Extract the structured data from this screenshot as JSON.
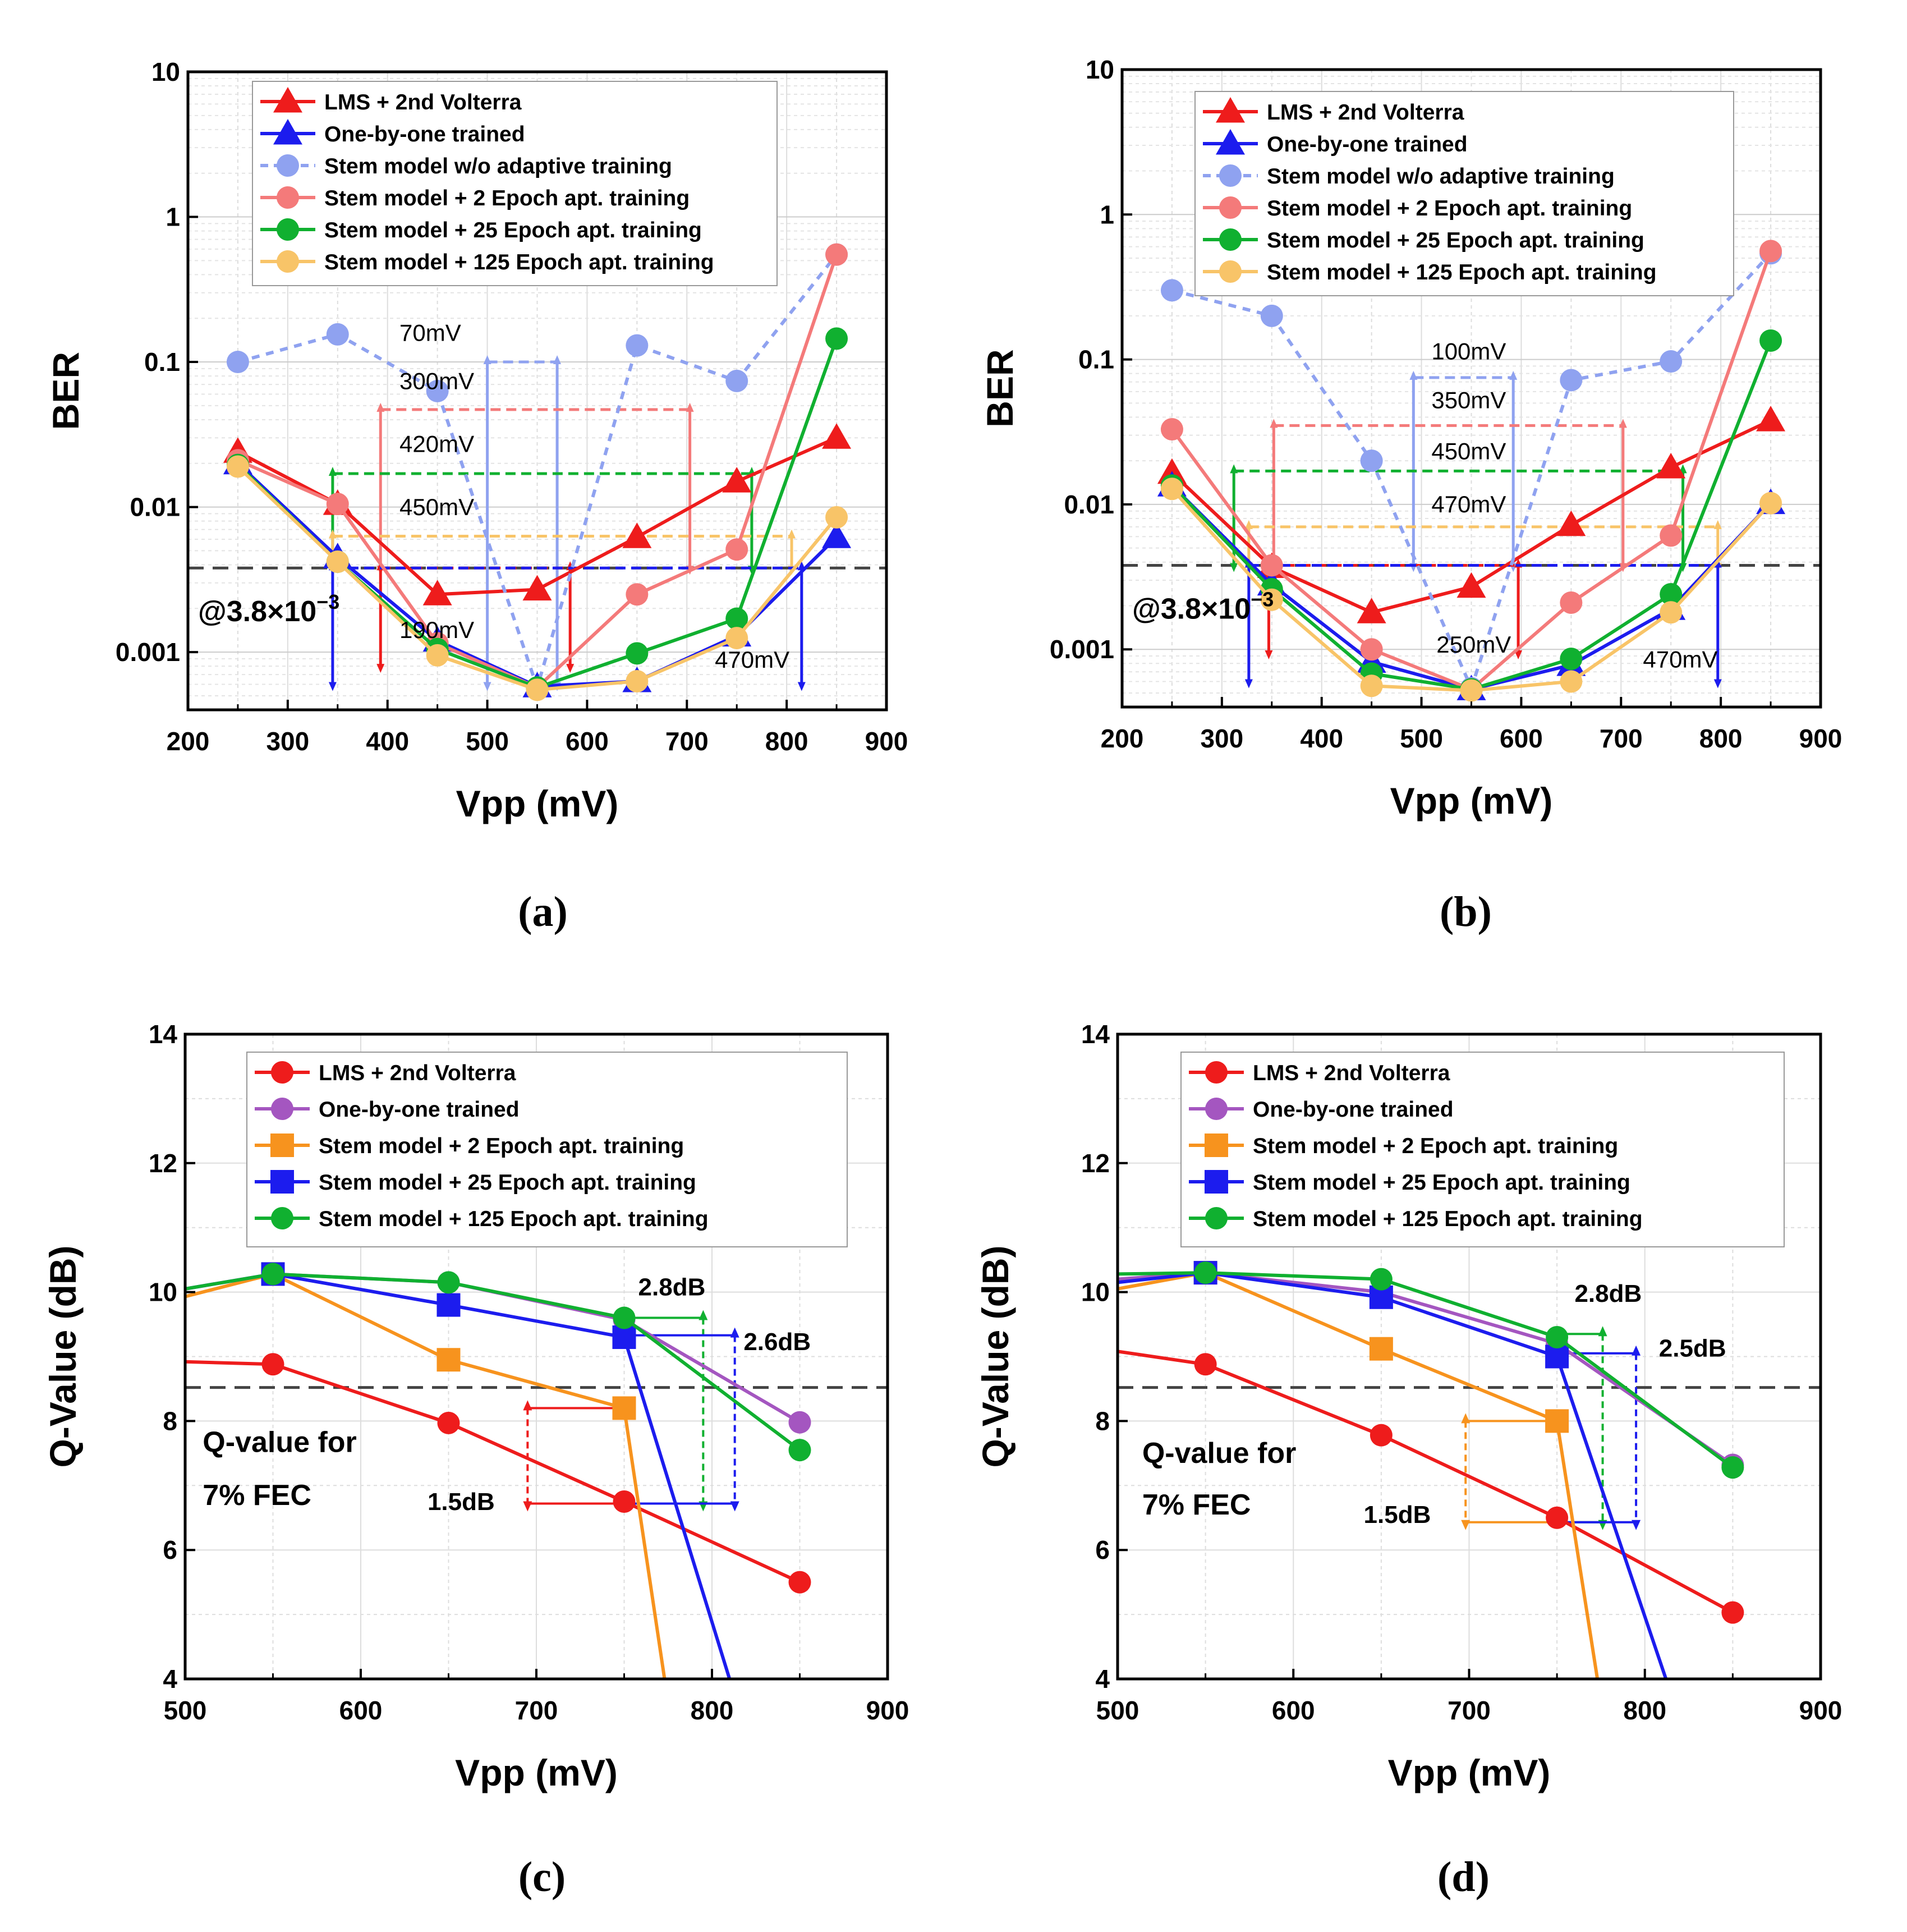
{
  "panel_labels": [
    "(a)",
    "(b)",
    "(c)",
    "(d)"
  ],
  "colors": {
    "lms": "#ee1c1c",
    "one_by_one": "#1c1cee",
    "stem_wo": "#8fa2f0",
    "stem_2_ber": "#f47a7a",
    "stem_25_ber": "#10b030",
    "stem_125_ber": "#f8c468",
    "one_by_one_q": "#a456c0",
    "stem_2_q": "#f7931e",
    "stem_25_q": "#1c1cee",
    "stem_125_q": "#10b030",
    "threshold": "#444444"
  },
  "chart_data": [
    {
      "id": "a",
      "type": "line",
      "yscale": "log",
      "xlabel": "Vpp (mV)",
      "ylabel": "BER",
      "xlim": [
        200,
        900
      ],
      "ylim": [
        0.0004,
        10
      ],
      "xticks": [
        200,
        300,
        400,
        500,
        600,
        700,
        800,
        900
      ],
      "yticks": [
        0.001,
        0.01,
        0.1,
        1,
        10
      ],
      "yticklabels": [
        "0.001",
        "0.01",
        "0.1",
        "1",
        "10"
      ],
      "threshold": 0.0038,
      "threshold_label": "@3.8×10",
      "threshold_exp": "−3",
      "x": [
        250,
        350,
        450,
        550,
        650,
        750,
        850
      ],
      "series": [
        {
          "name": "LMS + 2nd Volterra",
          "color": "lms",
          "marker": "triangle",
          "dash": false,
          "values": [
            0.024,
            0.0105,
            0.0025,
            0.0027,
            0.0062,
            0.015,
            0.03
          ]
        },
        {
          "name": "One-by-one trained",
          "color": "one_by_one",
          "marker": "triangle",
          "dash": false,
          "values": [
            0.02,
            0.0045,
            0.0012,
            0.00058,
            0.00063,
            0.0013,
            0.0062
          ]
        },
        {
          "name": "Stem model w/o adaptive training",
          "color": "stem_wo",
          "marker": "circle",
          "dash": true,
          "values": [
            0.1,
            0.155,
            0.063,
            0.00057,
            0.13,
            0.074,
            0.55
          ]
        },
        {
          "name": "Stem model + 2 Epoch apt. training",
          "color": "stem_2_ber",
          "marker": "circle",
          "dash": false,
          "values": [
            0.021,
            0.0105,
            0.00115,
            0.00057,
            0.0025,
            0.0051,
            0.55
          ]
        },
        {
          "name": "Stem model + 25 Epoch apt. training",
          "color": "stem_25_ber",
          "marker": "circle",
          "dash": false,
          "values": [
            0.0195,
            0.0042,
            0.00105,
            0.00057,
            0.00098,
            0.0017,
            0.145
          ]
        },
        {
          "name": "Stem model + 125 Epoch apt. training",
          "color": "stem_125_ber",
          "marker": "circle",
          "dash": false,
          "values": [
            0.019,
            0.0042,
            0.00095,
            0.00055,
            0.00063,
            0.00125,
            0.0085
          ]
        }
      ],
      "annotations": [
        {
          "text": "70mV",
          "at": [
            412,
            0.14
          ]
        },
        {
          "text": "300mV",
          "at": [
            412,
            0.065
          ]
        },
        {
          "text": "420mV",
          "at": [
            412,
            0.024
          ]
        },
        {
          "text": "450mV",
          "at": [
            412,
            0.0088
          ]
        },
        {
          "text": "190mV",
          "at": [
            412,
            0.00125
          ]
        },
        {
          "text": "470mV",
          "at": [
            728,
            0.00078
          ]
        }
      ],
      "brackets": [
        {
          "color": "stem_wo",
          "x1": 500,
          "x2": 570,
          "ytop": 0.1,
          "ybot": 0.0006
        },
        {
          "color": "stem_2_ber",
          "x1": 393,
          "x2": 703,
          "ytop": 0.047,
          "ybot": 0.0038
        },
        {
          "color": "stem_25_ber",
          "x1": 345,
          "x2": 765,
          "ytop": 0.017,
          "ybot": 0.0038
        },
        {
          "color": "stem_125_ber",
          "x1": 345,
          "x2": 805,
          "ytop": 0.0063,
          "ybot": 0.0038
        },
        {
          "color": "lms",
          "x1": 393,
          "x2": 583,
          "ytop": 0.0038,
          "ybot": 0.0008
        },
        {
          "color": "one_by_one",
          "x1": 345,
          "x2": 815,
          "ytop": 0.0038,
          "ybot": 0.0006
        }
      ]
    },
    {
      "id": "b",
      "type": "line",
      "yscale": "log",
      "xlabel": "Vpp (mV)",
      "ylabel": "BER",
      "xlim": [
        200,
        900
      ],
      "ylim": [
        0.0004,
        10
      ],
      "xticks": [
        200,
        300,
        400,
        500,
        600,
        700,
        800,
        900
      ],
      "yticks": [
        0.001,
        0.01,
        0.1,
        1,
        10
      ],
      "yticklabels": [
        "0.001",
        "0.01",
        "0.1",
        "1",
        "10"
      ],
      "threshold": 0.0038,
      "threshold_label": "@3.8×10",
      "threshold_exp": "−3",
      "x": [
        250,
        350,
        450,
        550,
        650,
        750,
        850
      ],
      "series": [
        {
          "name": "LMS + 2nd Volterra",
          "color": "lms",
          "marker": "triangle",
          "dash": false,
          "values": [
            0.0165,
            0.0037,
            0.0018,
            0.0027,
            0.0072,
            0.018,
            0.038
          ]
        },
        {
          "name": "One-by-one trained",
          "color": "one_by_one",
          "marker": "triangle",
          "dash": false,
          "values": [
            0.0135,
            0.0028,
            0.00082,
            0.00053,
            0.00078,
            0.0019,
            0.0102
          ]
        },
        {
          "name": "Stem model w/o adaptive training",
          "color": "stem_wo",
          "marker": "circle",
          "dash": true,
          "values": [
            0.3,
            0.2,
            0.02,
            0.00054,
            0.072,
            0.097,
            0.54
          ]
        },
        {
          "name": "Stem model + 2 Epoch apt. training",
          "color": "stem_2_ber",
          "marker": "circle",
          "dash": false,
          "values": [
            0.033,
            0.0038,
            0.001,
            0.00053,
            0.0021,
            0.0061,
            0.56
          ]
        },
        {
          "name": "Stem model + 25 Epoch apt. training",
          "color": "stem_25_ber",
          "marker": "circle",
          "dash": false,
          "values": [
            0.0135,
            0.0026,
            0.00068,
            0.00053,
            0.00086,
            0.0024,
            0.135
          ]
        },
        {
          "name": "Stem model + 125 Epoch apt. training",
          "color": "stem_125_ber",
          "marker": "circle",
          "dash": false,
          "values": [
            0.0128,
            0.0022,
            0.00056,
            0.00052,
            0.0006,
            0.0018,
            0.0102
          ]
        }
      ],
      "annotations": [
        {
          "text": "100mV",
          "at": [
            510,
            0.1
          ]
        },
        {
          "text": "350mV",
          "at": [
            510,
            0.046
          ]
        },
        {
          "text": "450mV",
          "at": [
            510,
            0.0205
          ]
        },
        {
          "text": "470mV",
          "at": [
            510,
            0.0088
          ]
        },
        {
          "text": "250mV",
          "at": [
            515,
            0.00095
          ]
        },
        {
          "text": "470mV",
          "at": [
            722,
            0.00075
          ]
        }
      ],
      "brackets": [
        {
          "color": "stem_wo",
          "x1": 492,
          "x2": 592,
          "ytop": 0.075,
          "ybot": 0.0038
        },
        {
          "color": "stem_2_ber",
          "x1": 352,
          "x2": 702,
          "ytop": 0.035,
          "ybot": 0.0038
        },
        {
          "color": "stem_25_ber",
          "x1": 312,
          "x2": 762,
          "ytop": 0.017,
          "ybot": 0.0038
        },
        {
          "color": "stem_125_ber",
          "x1": 327,
          "x2": 797,
          "ytop": 0.007,
          "ybot": 0.0038
        },
        {
          "color": "lms",
          "x1": 347,
          "x2": 597,
          "ytop": 0.0038,
          "ybot": 0.00095
        },
        {
          "color": "one_by_one",
          "x1": 327,
          "x2": 797,
          "ytop": 0.0038,
          "ybot": 0.0006
        }
      ]
    },
    {
      "id": "c",
      "type": "line",
      "yscale": "linear",
      "xlabel": "Vpp (mV)",
      "ylabel": "Q-Value (dB)",
      "xlim": [
        500,
        900
      ],
      "ylim": [
        4,
        14
      ],
      "xticks": [
        500,
        600,
        700,
        800,
        900
      ],
      "yticks": [
        4,
        6,
        8,
        10,
        12,
        14
      ],
      "yticklabels": [
        "4",
        "6",
        "8",
        "10",
        "12",
        "14"
      ],
      "threshold": 8.52,
      "q_note": [
        "Q-value for",
        "7% FEC"
      ],
      "series": [
        {
          "name": "LMS + 2nd Volterra",
          "color": "lms",
          "marker": "circle",
          "x": [
            500,
            550,
            650,
            750,
            850
          ],
          "values": [
            8.92,
            8.88,
            7.97,
            6.75,
            5.5
          ],
          "marker_skip_first": true
        },
        {
          "name": "One-by-one trained",
          "color": "one_by_one_q",
          "marker": "circle",
          "x": [
            500,
            550,
            650,
            750,
            850
          ],
          "values": [
            10.05,
            10.28,
            10.15,
            9.57,
            7.98
          ],
          "marker_skip_first": true
        },
        {
          "name": "Stem model + 2 Epoch apt. training",
          "color": "stem_2_q",
          "marker": "square",
          "x": [
            500,
            550,
            650,
            750,
            773
          ],
          "values": [
            9.93,
            10.28,
            8.95,
            8.2,
            4.0
          ],
          "marker_skip_first": true,
          "marker_skip_last": true
        },
        {
          "name": "Stem model + 25 Epoch apt. training",
          "color": "stem_25_q",
          "marker": "square",
          "x": [
            500,
            550,
            650,
            750,
            810
          ],
          "values": [
            10.05,
            10.28,
            9.8,
            9.3,
            4.0
          ],
          "marker_skip_first": true,
          "marker_skip_last": true
        },
        {
          "name": "Stem model + 125 Epoch apt. training",
          "color": "stem_125_q",
          "marker": "circle",
          "x": [
            500,
            550,
            650,
            750,
            850
          ],
          "values": [
            10.05,
            10.28,
            10.15,
            9.6,
            7.55
          ],
          "marker_skip_first": true
        }
      ],
      "annotations": [
        {
          "text": "2.8dB",
          "at": [
            758,
            9.95
          ]
        },
        {
          "text": "2.6dB",
          "at": [
            818,
            9.1
          ]
        },
        {
          "text": "1.5dB",
          "at": [
            638,
            6.62
          ]
        }
      ],
      "brackets": [
        {
          "color": "lms",
          "x_left": 695,
          "x_right": 750,
          "y_top": 8.2,
          "y_bot": 6.72
        },
        {
          "color": "stem_125_q",
          "x_left": 750,
          "x_right": 795,
          "y_top": 9.6,
          "y_bot": 6.72,
          "side": "right"
        },
        {
          "color": "stem_25_q",
          "x_left": 750,
          "x_right": 813,
          "y_top": 9.33,
          "y_bot": 6.72,
          "side": "right"
        }
      ]
    },
    {
      "id": "d",
      "type": "line",
      "yscale": "linear",
      "xlabel": "Vpp (mV)",
      "ylabel": "Q-Value (dB)",
      "xlim": [
        500,
        900
      ],
      "ylim": [
        4,
        14
      ],
      "xticks": [
        500,
        600,
        700,
        800,
        900
      ],
      "yticks": [
        4,
        6,
        8,
        10,
        12,
        14
      ],
      "yticklabels": [
        "4",
        "6",
        "8",
        "10",
        "12",
        "14"
      ],
      "threshold": 8.52,
      "q_note": [
        "Q-value for",
        "7% FEC"
      ],
      "series": [
        {
          "name": "LMS + 2nd Volterra",
          "color": "lms",
          "marker": "circle",
          "x": [
            500,
            550,
            650,
            750,
            850
          ],
          "values": [
            9.08,
            8.88,
            7.78,
            6.5,
            5.03
          ],
          "marker_skip_first": true
        },
        {
          "name": "One-by-one trained",
          "color": "one_by_one_q",
          "marker": "circle",
          "x": [
            500,
            550,
            650,
            750,
            850
          ],
          "values": [
            10.2,
            10.3,
            10.0,
            9.2,
            7.32
          ],
          "marker_skip_first": true
        },
        {
          "name": "Stem model + 2 Epoch apt. training",
          "color": "stem_2_q",
          "marker": "square",
          "x": [
            500,
            550,
            650,
            750,
            773
          ],
          "values": [
            10.05,
            10.3,
            9.12,
            8.0,
            4.0
          ],
          "marker_skip_first": true,
          "marker_skip_last": true
        },
        {
          "name": "Stem model + 25 Epoch apt. training",
          "color": "stem_25_q",
          "marker": "square",
          "x": [
            500,
            550,
            650,
            750,
            812
          ],
          "values": [
            10.15,
            10.3,
            9.92,
            9.0,
            4.0
          ],
          "marker_skip_first": true,
          "marker_skip_last": true
        },
        {
          "name": "Stem model + 125 Epoch apt. training",
          "color": "stem_125_q",
          "marker": "circle",
          "x": [
            500,
            550,
            650,
            750,
            850
          ],
          "values": [
            10.28,
            10.3,
            10.2,
            9.3,
            7.28
          ],
          "marker_skip_first": true
        }
      ],
      "annotations": [
        {
          "text": "2.8dB",
          "at": [
            760,
            9.85
          ]
        },
        {
          "text": "2.5dB",
          "at": [
            808,
            9.0
          ]
        },
        {
          "text": "1.5dB",
          "at": [
            640,
            6.42
          ]
        }
      ],
      "brackets": [
        {
          "color": "stem_2_q",
          "x_left": 698,
          "x_right": 750,
          "y_top": 8.0,
          "y_bot": 6.43
        },
        {
          "color": "stem_125_q",
          "x_left": 750,
          "x_right": 776,
          "y_top": 9.35,
          "y_bot": 6.43,
          "side": "right"
        },
        {
          "color": "stem_25_q",
          "x_left": 750,
          "x_right": 795,
          "y_top": 9.05,
          "y_bot": 6.43,
          "side": "right"
        }
      ]
    }
  ]
}
